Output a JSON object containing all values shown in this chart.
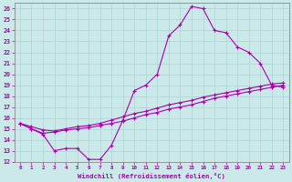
{
  "xlabel": "Windchill (Refroidissement éolien,°C)",
  "ylabel": "",
  "xlim": [
    -0.5,
    23.5
  ],
  "ylim": [
    12,
    26.5
  ],
  "xticks": [
    0,
    1,
    2,
    3,
    4,
    5,
    6,
    7,
    8,
    9,
    10,
    11,
    12,
    13,
    14,
    15,
    16,
    17,
    18,
    19,
    20,
    21,
    22,
    23
  ],
  "yticks": [
    12,
    13,
    14,
    15,
    16,
    17,
    18,
    19,
    20,
    21,
    22,
    23,
    24,
    25,
    26
  ],
  "bg_color": "#cce9e9",
  "grid_color": "#aad4d4",
  "line_color": "#aa00aa",
  "line1_x": [
    0,
    1,
    2,
    3,
    4,
    5,
    6,
    7,
    8,
    9,
    10,
    11,
    12,
    13,
    14,
    15,
    16,
    17,
    18,
    19,
    20,
    21,
    22,
    23
  ],
  "line1_y": [
    15.5,
    15.0,
    14.5,
    13.0,
    13.2,
    13.2,
    12.2,
    12.2,
    13.5,
    15.8,
    18.5,
    19.0,
    20.0,
    23.5,
    24.5,
    26.2,
    26.0,
    24.0,
    23.8,
    22.5,
    22.0,
    21.0,
    19.0,
    18.8
  ],
  "line2_x": [
    0,
    1,
    2,
    3,
    4,
    5,
    6,
    7,
    8,
    9,
    10,
    11,
    12,
    13,
    14,
    15,
    16,
    17,
    18,
    19,
    20,
    21,
    22,
    23
  ],
  "line2_y": [
    15.5,
    15.0,
    14.6,
    14.7,
    14.9,
    15.0,
    15.1,
    15.3,
    15.5,
    15.7,
    16.0,
    16.3,
    16.5,
    16.8,
    17.0,
    17.2,
    17.5,
    17.8,
    18.0,
    18.2,
    18.4,
    18.6,
    18.8,
    19.0
  ],
  "line3_x": [
    0,
    1,
    2,
    3,
    4,
    5,
    6,
    7,
    8,
    9,
    10,
    11,
    12,
    13,
    14,
    15,
    16,
    17,
    18,
    19,
    20,
    21,
    22,
    23
  ],
  "line3_y": [
    15.5,
    15.2,
    14.9,
    14.8,
    15.0,
    15.2,
    15.3,
    15.5,
    15.8,
    16.1,
    16.4,
    16.6,
    16.9,
    17.2,
    17.4,
    17.6,
    17.9,
    18.1,
    18.3,
    18.5,
    18.7,
    18.9,
    19.1,
    19.2
  ]
}
